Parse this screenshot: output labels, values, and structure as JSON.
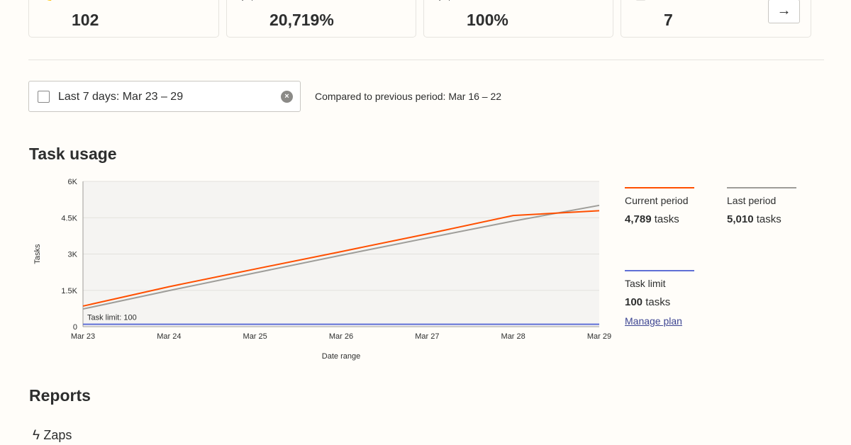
{
  "stats": [
    {
      "icon": "bolt-icon",
      "value": "102"
    },
    {
      "icon": "gauge-icon",
      "value": "20,719%"
    },
    {
      "icon": "check-circle-icon",
      "value": "100%"
    },
    {
      "icon": "alert-icon",
      "value": "7"
    }
  ],
  "date_filter": {
    "value": "Last 7 days: Mar 23 – 29",
    "compare": "Compared to previous period: Mar 16 – 22"
  },
  "task_usage": {
    "title": "Task usage"
  },
  "legend": {
    "current": {
      "label": "Current period",
      "value": "4,789",
      "unit": "tasks"
    },
    "last": {
      "label": "Last period",
      "value": "5,010",
      "unit": "tasks"
    },
    "limit": {
      "label": "Task limit",
      "value": "100",
      "unit": "tasks",
      "link": "Manage plan"
    }
  },
  "colors": {
    "current": "#ff4f00",
    "last": "#9e9d99",
    "limit": "#5f6fd6"
  },
  "chart_data": {
    "type": "line",
    "xlabel": "Date range",
    "ylabel": "Tasks",
    "categories": [
      "Mar 23",
      "Mar 24",
      "Mar 25",
      "Mar 26",
      "Mar 27",
      "Mar 28",
      "Mar 29"
    ],
    "yticks": [
      "0",
      "1.5K",
      "3K",
      "4.5K",
      "6K"
    ],
    "ylim": [
      0,
      6000
    ],
    "grid": true,
    "legend": "right",
    "annotation": "Task limit: 100",
    "series": [
      {
        "name": "Current period",
        "values": [
          850,
          1650,
          2380,
          3100,
          3830,
          4590,
          4789
        ]
      },
      {
        "name": "Last period",
        "values": [
          730,
          1490,
          2220,
          2950,
          3660,
          4360,
          5010
        ]
      },
      {
        "name": "Task limit",
        "values": [
          100,
          100,
          100,
          100,
          100,
          100,
          100
        ]
      }
    ]
  },
  "reports": {
    "title": "Reports",
    "zaps_label": "Zaps"
  }
}
